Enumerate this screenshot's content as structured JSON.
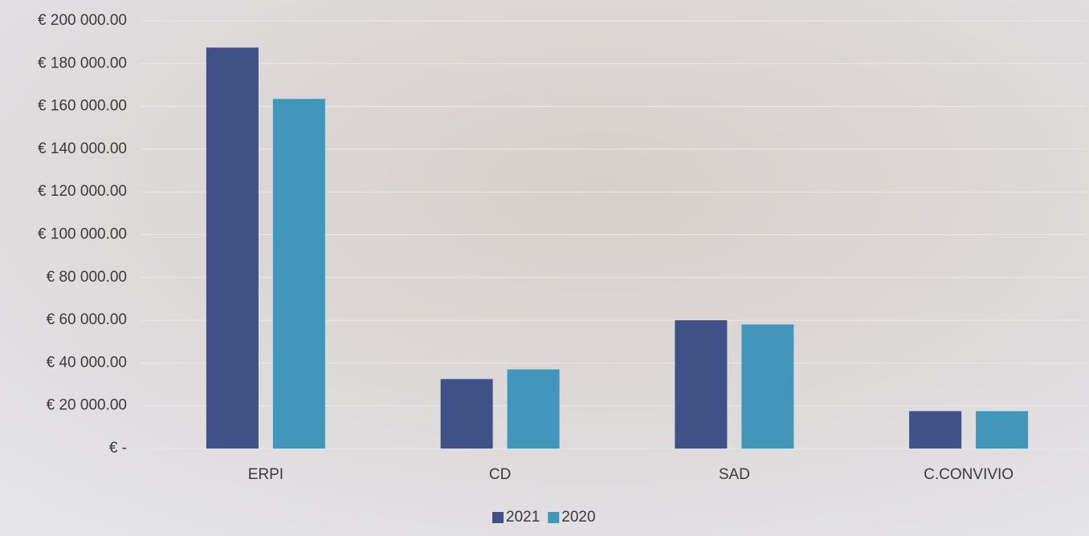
{
  "chart_data": {
    "type": "bar",
    "categories": [
      "ERPI",
      "CD",
      "SAD",
      "C.CONVIVIO"
    ],
    "series": [
      {
        "name": "2021",
        "color": "#3f5186",
        "values": [
          187500,
          32500,
          60000,
          17500
        ]
      },
      {
        "name": "2020",
        "color": "#4196ba",
        "values": [
          163500,
          37000,
          58000,
          17500
        ]
      }
    ],
    "ylim": [
      0,
      200000
    ],
    "yticks": [
      {
        "value": 0,
        "label": "€ -"
      },
      {
        "value": 20000,
        "label": "€ 20 000.00"
      },
      {
        "value": 40000,
        "label": "€ 40 000.00"
      },
      {
        "value": 60000,
        "label": "€ 60 000.00"
      },
      {
        "value": 80000,
        "label": "€ 80 000.00"
      },
      {
        "value": 100000,
        "label": "€ 100 000.00"
      },
      {
        "value": 120000,
        "label": "€ 120 000.00"
      },
      {
        "value": 140000,
        "label": "€ 140 000.00"
      },
      {
        "value": 160000,
        "label": "€ 160 000.00"
      },
      {
        "value": 180000,
        "label": "€ 180 000.00"
      },
      {
        "value": 200000,
        "label": "€ 200 000.00"
      }
    ],
    "grid": true,
    "legend": "bottom"
  }
}
